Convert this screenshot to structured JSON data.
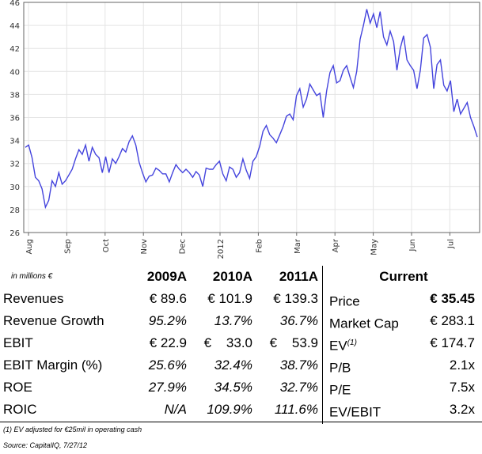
{
  "chart_data": {
    "type": "line",
    "ylim": [
      26,
      46
    ],
    "yticks": [
      "26",
      "28",
      "30",
      "32",
      "34",
      "36",
      "38",
      "40",
      "42",
      "44",
      "46"
    ],
    "xticks": [
      "Aug",
      "Sep",
      "Oct",
      "Nov",
      "Dec",
      "2012",
      "Feb",
      "Mar",
      "Apr",
      "May",
      "Jun",
      "Jul"
    ],
    "line_color": "#4444dd",
    "grid": true,
    "series": [
      {
        "values": [
          33.4,
          33.6,
          32.5,
          30.8,
          30.5,
          29.8,
          28.2,
          28.8,
          30.5,
          30.0,
          31.2,
          30.2,
          30.5,
          31.0,
          31.5,
          32.4,
          33.2,
          32.8,
          33.6,
          32.2,
          33.4,
          32.8,
          32.5,
          31.2,
          32.6,
          31.2,
          32.4,
          32.0,
          32.6,
          33.3,
          33.0,
          33.9,
          34.4,
          33.6,
          32.1,
          31.2,
          30.4,
          30.9,
          31.0,
          31.6,
          31.4,
          31.1,
          31.1,
          30.4,
          31.2,
          31.9,
          31.5,
          31.2,
          31.5,
          31.2,
          30.8,
          31.3,
          31.0,
          30.0,
          31.6,
          31.5,
          31.5,
          31.9,
          32.2,
          31.1,
          30.5,
          31.7,
          31.5,
          30.8,
          31.2,
          32.4,
          31.4,
          30.7,
          32.2,
          32.6,
          33.5,
          34.8,
          35.3,
          34.5,
          34.2,
          33.8,
          34.5,
          35.2,
          36.1,
          36.3,
          35.8,
          37.9,
          38.5,
          36.9,
          37.6,
          38.9,
          38.4,
          37.9,
          38.1,
          36.0,
          38.3,
          39.9,
          40.5,
          39.0,
          39.2,
          40.1,
          40.5,
          39.5,
          38.6,
          40.0,
          42.8,
          44.0,
          45.4,
          44.2,
          45.0,
          43.8,
          45.2,
          43.0,
          42.3,
          43.5,
          42.6,
          40.1,
          42.0,
          43.1,
          41.0,
          40.5,
          40.1,
          38.5,
          40.1,
          42.9,
          43.2,
          42.1,
          38.5,
          40.6,
          41.0,
          38.8,
          38.3,
          39.2,
          36.5,
          37.6,
          36.3,
          36.8,
          37.3,
          36.0,
          35.2,
          34.3
        ]
      }
    ]
  },
  "table": {
    "units_note": "in millions €",
    "headers": [
      "2009A",
      "2010A",
      "2011A"
    ],
    "current_header": "Current",
    "rows": [
      {
        "label": "Revenues",
        "v1": "€ 89.6",
        "v2": "€ 101.9",
        "v3": "€ 139.3",
        "cur_label": "Price",
        "cur_sup": "",
        "cur_val": "€ 35.45"
      },
      {
        "label": "Revenue Growth",
        "v1": "95.2%",
        "v2": "13.7%",
        "v3": "36.7%",
        "cur_label": "Market Cap",
        "cur_sup": "",
        "cur_val": "€ 283.1"
      },
      {
        "label": "EBIT",
        "v1": "€ 22.9",
        "v2": "€    33.0",
        "v3": "€    53.9",
        "cur_label": "EV",
        "cur_sup": "(1)",
        "cur_val": "€ 174.7"
      },
      {
        "label": "EBIT Margin (%)",
        "v1": "25.6%",
        "v2": "32.4%",
        "v3": "38.7%",
        "cur_label": "P/B",
        "cur_sup": "",
        "cur_val": "2.1x"
      },
      {
        "label": "ROE",
        "v1": "27.9%",
        "v2": "34.5%",
        "v3": "32.7%",
        "cur_label": "P/E",
        "cur_sup": "",
        "cur_val": "7.5x"
      },
      {
        "label": "ROIC",
        "v1": "N/A",
        "v2": "109.9%",
        "v3": "111.6%",
        "cur_label": "EV/EBIT",
        "cur_sup": "",
        "cur_val": "3.2x"
      }
    ],
    "footnote": "(1) EV adjusted for €25mil in operating cash",
    "source": "Source: CapitalIQ, 7/27/12"
  }
}
